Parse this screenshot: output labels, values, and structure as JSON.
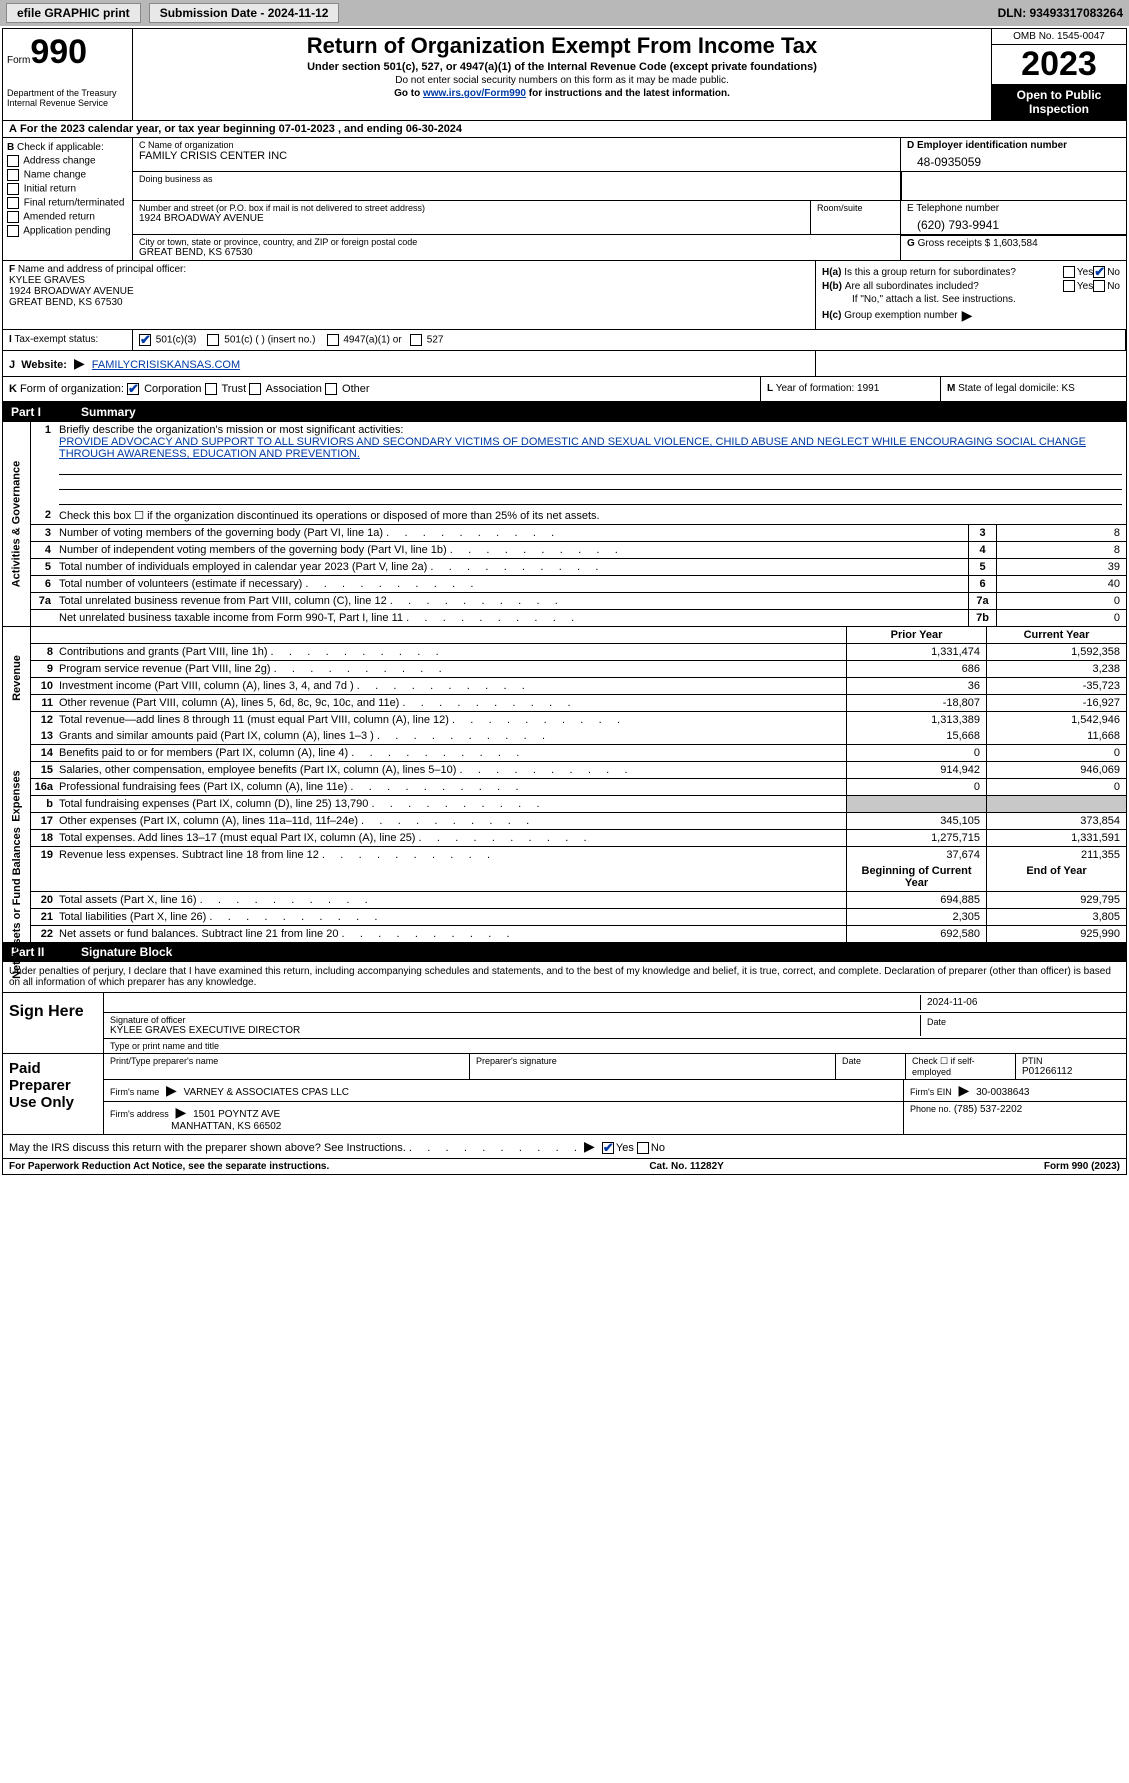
{
  "topbar": {
    "efile": "efile GRAPHIC print",
    "submission": "Submission Date - 2024-11-12",
    "dln": "DLN: 93493317083264"
  },
  "header": {
    "form_prefix": "Form",
    "form_number": "990",
    "title": "Return of Organization Exempt From Income Tax",
    "subtitle": "Under section 501(c), 527, or 4947(a)(1) of the Internal Revenue Code (except private foundations)",
    "note1": "Do not enter social security numbers on this form as it may be made public.",
    "note2_prefix": "Go to ",
    "note2_link": "www.irs.gov/Form990",
    "note2_suffix": " for instructions and the latest information.",
    "omb": "OMB No. 1545-0047",
    "year": "2023",
    "open": "Open to Public Inspection",
    "dept": "Department of the Treasury Internal Revenue Service"
  },
  "row_a": {
    "prefix": "A",
    "text": "For the 2023 calendar year, or tax year beginning 07-01-2023    , and ending 06-30-2024"
  },
  "section_b": {
    "label": "B",
    "check_label": "Check if applicable:",
    "items": [
      "Address change",
      "Name change",
      "Initial return",
      "Final return/terminated",
      "Amended return",
      "Application pending"
    ]
  },
  "section_c": {
    "name_label": "C Name of organization",
    "name": "FAMILY CRISIS CENTER INC",
    "dba_label": "Doing business as",
    "dba": "",
    "street_label": "Number and street (or P.O. box if mail is not delivered to street address)",
    "street": "1924 BROADWAY AVENUE",
    "room_label": "Room/suite",
    "city_label": "City or town, state or province, country, and ZIP or foreign postal code",
    "city": "GREAT BEND, KS  67530"
  },
  "section_d": {
    "ein_label": "D Employer identification number",
    "ein": "48-0935059",
    "phone_label": "E Telephone number",
    "phone": "(620) 793-9941",
    "gross_label": "G",
    "gross_text": "Gross receipts $",
    "gross": "1,603,584"
  },
  "section_f": {
    "label": "F",
    "text": "Name and address of principal officer:",
    "name": "KYLEE GRAVES",
    "addr1": "1924 BROADWAY AVENUE",
    "addr2": "GREAT BEND, KS  67530"
  },
  "section_h": {
    "ha_label": "H(a)",
    "ha_text": "Is this a group return for subordinates?",
    "hb_label": "H(b)",
    "hb_text": "Are all subordinates included?",
    "hb_note": "If \"No,\" attach a list. See instructions.",
    "hc_label": "H(c)",
    "hc_text": "Group exemption number",
    "yes": "Yes",
    "no": "No"
  },
  "section_i": {
    "label": "I",
    "text": "Tax-exempt status:",
    "opt1": "501(c)(3)",
    "opt2": "501(c) (  ) (insert no.)",
    "opt3": "4947(a)(1) or",
    "opt4": "527"
  },
  "section_j": {
    "label": "J",
    "text": "Website:",
    "arrow": "▶",
    "url": "FAMILYCRISISKANSAS.COM"
  },
  "section_k": {
    "label": "K",
    "text": "Form of organization:",
    "opts": [
      "Corporation",
      "Trust",
      "Association",
      "Other"
    ]
  },
  "section_l": {
    "label": "L",
    "text": "Year of formation: 1991"
  },
  "section_m": {
    "label": "M",
    "text": "State of legal domicile: KS"
  },
  "part1": {
    "num": "Part I",
    "title": "Summary"
  },
  "mission": {
    "num": "1",
    "label": "Briefly describe the organization's mission or most significant activities:",
    "text": "PROVIDE ADVOCACY AND SUPPORT TO ALL SURVIORS AND SECONDARY VICTIMS OF DOMESTIC AND SEXUAL VIOLENCE, CHILD ABUSE AND NEGLECT WHILE ENCOURAGING SOCIAL CHANGE THROUGH AWARENESS, EDUCATION AND PREVENTION."
  },
  "gov_rows": [
    {
      "num": "2",
      "text": "Check this box ☐ if the organization discontinued its operations or disposed of more than 25% of its net assets.",
      "box": "",
      "val": ""
    },
    {
      "num": "3",
      "text": "Number of voting members of the governing body (Part VI, line 1a)",
      "box": "3",
      "val": "8"
    },
    {
      "num": "4",
      "text": "Number of independent voting members of the governing body (Part VI, line 1b)",
      "box": "4",
      "val": "8"
    },
    {
      "num": "5",
      "text": "Total number of individuals employed in calendar year 2023 (Part V, line 2a)",
      "box": "5",
      "val": "39"
    },
    {
      "num": "6",
      "text": "Total number of volunteers (estimate if necessary)",
      "box": "6",
      "val": "40"
    },
    {
      "num": "7a",
      "text": "Total unrelated business revenue from Part VIII, column (C), line 12",
      "box": "7a",
      "val": "0"
    },
    {
      "num": "",
      "text": "Net unrelated business taxable income from Form 990-T, Part I, line 11",
      "box": "7b",
      "val": "0"
    }
  ],
  "fin_headers": {
    "prior": "Prior Year",
    "current": "Current Year"
  },
  "revenue_rows": [
    {
      "num": "8",
      "text": "Contributions and grants (Part VIII, line 1h)",
      "prior": "1,331,474",
      "current": "1,592,358"
    },
    {
      "num": "9",
      "text": "Program service revenue (Part VIII, line 2g)",
      "prior": "686",
      "current": "3,238"
    },
    {
      "num": "10",
      "text": "Investment income (Part VIII, column (A), lines 3, 4, and 7d )",
      "prior": "36",
      "current": "-35,723"
    },
    {
      "num": "11",
      "text": "Other revenue (Part VIII, column (A), lines 5, 6d, 8c, 9c, 10c, and 11e)",
      "prior": "-18,807",
      "current": "-16,927"
    },
    {
      "num": "12",
      "text": "Total revenue—add lines 8 through 11 (must equal Part VIII, column (A), line 12)",
      "prior": "1,313,389",
      "current": "1,542,946"
    }
  ],
  "expense_rows": [
    {
      "num": "13",
      "text": "Grants and similar amounts paid (Part IX, column (A), lines 1–3 )",
      "prior": "15,668",
      "current": "11,668"
    },
    {
      "num": "14",
      "text": "Benefits paid to or for members (Part IX, column (A), line 4)",
      "prior": "0",
      "current": "0"
    },
    {
      "num": "15",
      "text": "Salaries, other compensation, employee benefits (Part IX, column (A), lines 5–10)",
      "prior": "914,942",
      "current": "946,069"
    },
    {
      "num": "16a",
      "text": "Professional fundraising fees (Part IX, column (A), line 11e)",
      "prior": "0",
      "current": "0"
    },
    {
      "num": "b",
      "text": "Total fundraising expenses (Part IX, column (D), line 25) 13,790",
      "prior": "grey",
      "current": "grey"
    },
    {
      "num": "17",
      "text": "Other expenses (Part IX, column (A), lines 11a–11d, 11f–24e)",
      "prior": "345,105",
      "current": "373,854"
    },
    {
      "num": "18",
      "text": "Total expenses. Add lines 13–17 (must equal Part IX, column (A), line 25)",
      "prior": "1,275,715",
      "current": "1,331,591"
    },
    {
      "num": "19",
      "text": "Revenue less expenses. Subtract line 18 from line 12",
      "prior": "37,674",
      "current": "211,355"
    }
  ],
  "na_headers": {
    "begin": "Beginning of Current Year",
    "end": "End of Year"
  },
  "na_rows": [
    {
      "num": "20",
      "text": "Total assets (Part X, line 16)",
      "prior": "694,885",
      "current": "929,795"
    },
    {
      "num": "21",
      "text": "Total liabilities (Part X, line 26)",
      "prior": "2,305",
      "current": "3,805"
    },
    {
      "num": "22",
      "text": "Net assets or fund balances. Subtract line 21 from line 20",
      "prior": "692,580",
      "current": "925,990"
    }
  ],
  "side_labels": {
    "gov": "Activities & Governance",
    "rev": "Revenue",
    "exp": "Expenses",
    "na": "Net Assets or Fund Balances"
  },
  "part2": {
    "num": "Part II",
    "title": "Signature Block"
  },
  "sig": {
    "perjury": "Under penalties of perjury, I declare that I have examined this return, including accompanying schedules and statements, and to the best of my knowledge and belief, it is true, correct, and complete. Declaration of preparer (other than officer) is based on all information of which preparer has any knowledge.",
    "sign_here": "Sign Here",
    "date": "2024-11-06",
    "sig_label": "Signature of officer",
    "officer": "KYLEE GRAVES  EXECUTIVE DIRECTOR",
    "name_label": "Type or print name and title",
    "date_label": "Date"
  },
  "paid": {
    "title": "Paid Preparer Use Only",
    "name_label": "Print/Type preparer's name",
    "sig_label": "Preparer's signature",
    "date_label": "Date",
    "check_label": "Check ☐ if self-employed",
    "ptin_label": "PTIN",
    "ptin": "P01266112",
    "firm_label": "Firm's name",
    "firm": "VARNEY & ASSOCIATES CPAS LLC",
    "ein_label": "Firm's EIN",
    "ein": "30-0038643",
    "addr_label": "Firm's address",
    "addr1": "1501 POYNTZ AVE",
    "addr2": "MANHATTAN, KS  66502",
    "phone_label": "Phone no.",
    "phone": "(785) 537-2202"
  },
  "discuss": {
    "text": "May the IRS discuss this return with the preparer shown above? See Instructions.",
    "yes": "Yes",
    "no": "No"
  },
  "footer": {
    "left": "For Paperwork Reduction Act Notice, see the separate instructions.",
    "mid": "Cat. No. 11282Y",
    "right": "Form 990 (2023)"
  }
}
